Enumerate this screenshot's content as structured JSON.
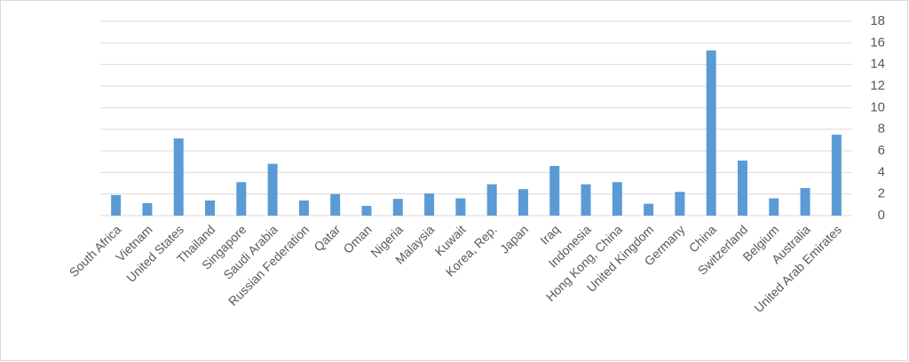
{
  "chart_data": {
    "type": "bar",
    "categories": [
      "South Africa",
      "Vietnam",
      "United States",
      "Thailand",
      "Singapore",
      "Saudi Arabia",
      "Russian Federation",
      "Qatar",
      "Oman",
      "Nigeria",
      "Malaysia",
      "Kuwait",
      "Korea, Rep.",
      "Japan",
      "Iraq",
      "Indonesia",
      "Hong Kong, China",
      "United Kingdom",
      "Germany",
      "China",
      "Switzerland",
      "Belgium",
      "Australia",
      "United Arab Emirates"
    ],
    "values": [
      1.9,
      1.15,
      7.15,
      1.4,
      3.1,
      4.8,
      1.4,
      2.0,
      0.9,
      1.55,
      2.05,
      1.6,
      2.9,
      2.45,
      4.6,
      2.9,
      3.1,
      1.1,
      2.2,
      15.3,
      5.1,
      1.6,
      2.55,
      7.5
    ],
    "color": "#5b9bd5",
    "ylim": [
      0,
      18
    ],
    "yticks": [
      0,
      2,
      4,
      6,
      8,
      10,
      12,
      14,
      16,
      18
    ],
    "grid": true,
    "y_axis_side": "right"
  }
}
